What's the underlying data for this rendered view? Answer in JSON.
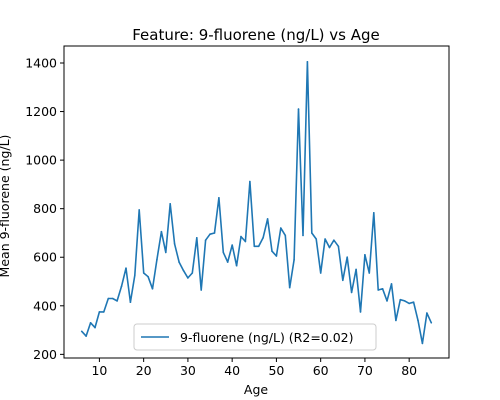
{
  "chart_data": {
    "type": "line",
    "title": "Feature: 9-fluorene (ng/L) vs Age",
    "xlabel": "Age",
    "ylabel": "Mean 9-fluorene (ng/L)",
    "xlim": [
      2,
      89
    ],
    "ylim": [
      185,
      1470
    ],
    "xticks": [
      10,
      20,
      30,
      40,
      50,
      60,
      70,
      80
    ],
    "yticks": [
      200,
      400,
      600,
      800,
      1000,
      1200,
      1400
    ],
    "grid": false,
    "legend_position": "lower center",
    "colors": {
      "series": "#1f77b4",
      "axes": "#000000",
      "legend_border": "#cccccc"
    },
    "series": [
      {
        "name": "9-fluorene (ng/L) (R2=0.02)",
        "x": [
          6,
          7,
          8,
          9,
          10,
          11,
          12,
          13,
          14,
          15,
          16,
          17,
          18,
          19,
          20,
          21,
          22,
          23,
          24,
          25,
          26,
          27,
          28,
          29,
          30,
          31,
          32,
          33,
          34,
          35,
          36,
          37,
          38,
          39,
          40,
          41,
          42,
          43,
          44,
          45,
          46,
          47,
          48,
          49,
          50,
          51,
          52,
          53,
          54,
          55,
          56,
          57,
          58,
          59,
          60,
          61,
          62,
          63,
          64,
          65,
          66,
          67,
          68,
          69,
          70,
          71,
          72,
          73,
          74,
          75,
          76,
          77,
          78,
          79,
          80,
          81,
          82,
          83,
          84,
          85
        ],
        "y": [
          295,
          275,
          330,
          310,
          375,
          375,
          430,
          430,
          420,
          480,
          555,
          415,
          525,
          795,
          535,
          520,
          470,
          590,
          705,
          620,
          820,
          655,
          580,
          545,
          515,
          535,
          680,
          465,
          670,
          695,
          700,
          845,
          620,
          580,
          650,
          565,
          685,
          665,
          912,
          645,
          645,
          680,
          758,
          625,
          605,
          720,
          690,
          475,
          590,
          1210,
          690,
          1405,
          700,
          675,
          535,
          675,
          640,
          670,
          645,
          505,
          600,
          455,
          550,
          375,
          610,
          535,
          783,
          465,
          470,
          420,
          490,
          340,
          425,
          420,
          410,
          415,
          340,
          245,
          370,
          330
        ]
      }
    ]
  }
}
